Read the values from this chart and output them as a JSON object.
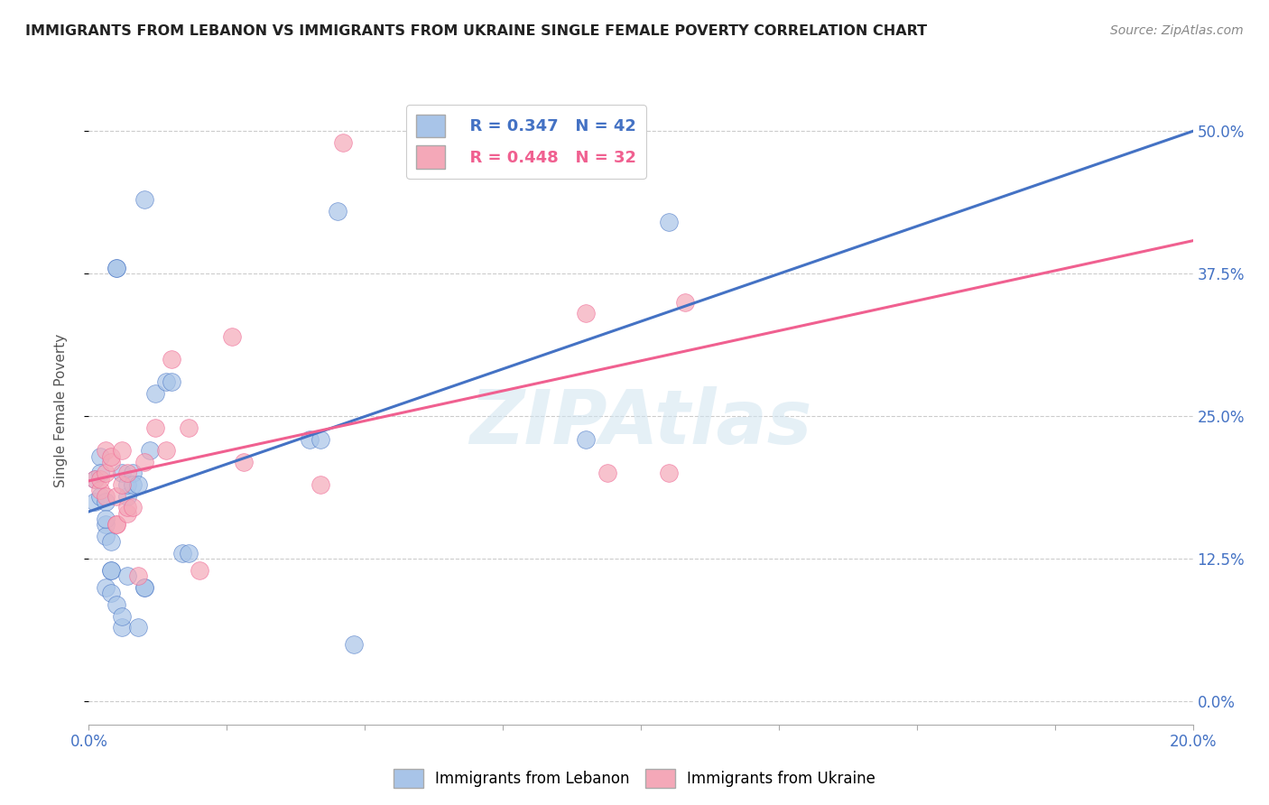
{
  "title": "IMMIGRANTS FROM LEBANON VS IMMIGRANTS FROM UKRAINE SINGLE FEMALE POVERTY CORRELATION CHART",
  "source": "Source: ZipAtlas.com",
  "ylabel": "Single Female Poverty",
  "yticks": [
    "0.0%",
    "12.5%",
    "25.0%",
    "37.5%",
    "50.0%"
  ],
  "ytick_vals": [
    0.0,
    0.125,
    0.25,
    0.375,
    0.5
  ],
  "xlim": [
    0.0,
    0.2
  ],
  "ylim": [
    -0.02,
    0.53
  ],
  "lebanon_color": "#a8c4e8",
  "ukraine_color": "#f4a8b8",
  "lebanon_line_color": "#4472c4",
  "ukraine_line_color": "#f06090",
  "legend_r_lebanon": "R = 0.347",
  "legend_n_lebanon": "N = 42",
  "legend_r_ukraine": "R = 0.448",
  "legend_n_ukraine": "N = 32",
  "watermark": "ZIPAtlas",
  "lebanon_x": [
    0.001,
    0.001,
    0.002,
    0.002,
    0.002,
    0.003,
    0.003,
    0.003,
    0.003,
    0.003,
    0.004,
    0.004,
    0.004,
    0.004,
    0.005,
    0.005,
    0.005,
    0.006,
    0.006,
    0.006,
    0.007,
    0.007,
    0.007,
    0.008,
    0.008,
    0.009,
    0.009,
    0.01,
    0.01,
    0.01,
    0.011,
    0.012,
    0.014,
    0.015,
    0.017,
    0.018,
    0.04,
    0.042,
    0.045,
    0.048,
    0.09,
    0.105
  ],
  "lebanon_y": [
    0.195,
    0.175,
    0.215,
    0.18,
    0.2,
    0.175,
    0.155,
    0.145,
    0.1,
    0.16,
    0.14,
    0.115,
    0.115,
    0.095,
    0.085,
    0.38,
    0.38,
    0.2,
    0.065,
    0.075,
    0.18,
    0.19,
    0.11,
    0.2,
    0.19,
    0.19,
    0.065,
    0.1,
    0.44,
    0.1,
    0.22,
    0.27,
    0.28,
    0.28,
    0.13,
    0.13,
    0.23,
    0.23,
    0.43,
    0.05,
    0.23,
    0.42
  ],
  "ukraine_x": [
    0.001,
    0.002,
    0.002,
    0.003,
    0.003,
    0.003,
    0.004,
    0.004,
    0.005,
    0.005,
    0.005,
    0.006,
    0.006,
    0.007,
    0.007,
    0.007,
    0.008,
    0.009,
    0.01,
    0.012,
    0.014,
    0.015,
    0.018,
    0.02,
    0.026,
    0.028,
    0.042,
    0.046,
    0.09,
    0.094,
    0.105,
    0.108
  ],
  "ukraine_y": [
    0.195,
    0.185,
    0.195,
    0.22,
    0.18,
    0.2,
    0.21,
    0.215,
    0.155,
    0.155,
    0.18,
    0.19,
    0.22,
    0.165,
    0.2,
    0.17,
    0.17,
    0.11,
    0.21,
    0.24,
    0.22,
    0.3,
    0.24,
    0.115,
    0.32,
    0.21,
    0.19,
    0.49,
    0.34,
    0.2,
    0.2,
    0.35
  ],
  "x_tick_positions": [
    0.0,
    0.025,
    0.05,
    0.075,
    0.1,
    0.125,
    0.15,
    0.175,
    0.2
  ],
  "background_color": "#ffffff"
}
